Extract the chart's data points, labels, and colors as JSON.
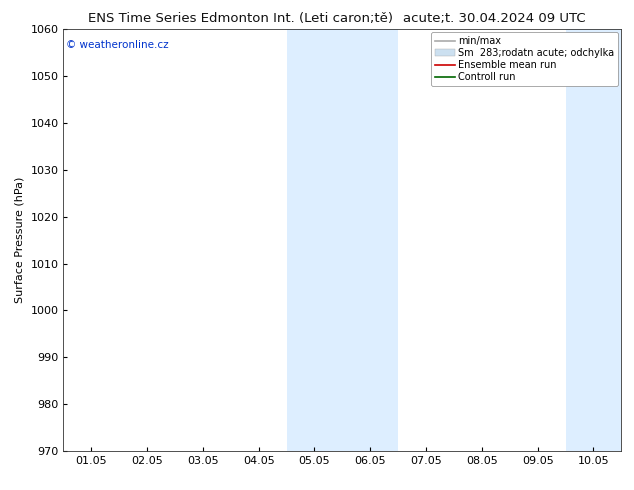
{
  "title_left": "ENS Time Series Edmonton Int. (Leti caron;tě)",
  "title_right": "acute;t. 30.04.2024 09 UTC",
  "ylabel": "Surface Pressure (hPa)",
  "ylim": [
    970,
    1060
  ],
  "yticks": [
    970,
    980,
    990,
    1000,
    1010,
    1020,
    1030,
    1040,
    1050,
    1060
  ],
  "xtick_labels": [
    "01.05",
    "02.05",
    "03.05",
    "04.05",
    "05.05",
    "06.05",
    "07.05",
    "08.05",
    "09.05",
    "10.05"
  ],
  "xtick_positions": [
    0,
    1,
    2,
    3,
    4,
    5,
    6,
    7,
    8,
    9
  ],
  "xlim": [
    -0.5,
    9.5
  ],
  "shaded_regions": [
    {
      "xmin": 3.5,
      "xmax": 5.5,
      "color": "#ddeeff"
    },
    {
      "xmin": 8.5,
      "xmax": 9.5,
      "color": "#ddeeff"
    }
  ],
  "legend_entries": [
    {
      "label": "min/max",
      "color": "#aaaaaa",
      "lw": 1.2,
      "type": "line"
    },
    {
      "label": "Sm  283;rodatn acute; odchylka",
      "color": "#cce0f0",
      "lw": 8,
      "type": "bar"
    },
    {
      "label": "Ensemble mean run",
      "color": "#cc0000",
      "lw": 1.2,
      "type": "line"
    },
    {
      "label": "Controll run",
      "color": "#006600",
      "lw": 1.2,
      "type": "line"
    }
  ],
  "watermark_text": "© weatheronline.cz",
  "watermark_color": "#0033cc",
  "bg_color": "#ffffff",
  "title_fontsize": 9.5,
  "tick_label_fontsize": 8,
  "ylabel_fontsize": 8
}
